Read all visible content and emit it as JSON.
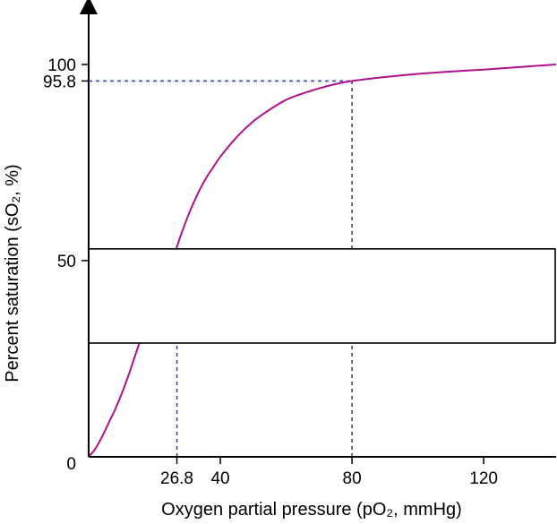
{
  "chart_data": {
    "type": "line",
    "title": "",
    "xlabel": "Oxygen partial pressure (pO₂, mmHg)",
    "ylabel": "Percent saturation (sO₂, %)",
    "xlim": [
      0,
      142
    ],
    "ylim": [
      0,
      100
    ],
    "xticks": [
      26.8,
      40,
      80,
      120
    ],
    "xtick_labels": [
      "26.8",
      "40",
      "80",
      "120"
    ],
    "yticks": [
      0,
      50,
      95.8,
      100
    ],
    "ytick_labels": [
      "0",
      "50",
      "95.8",
      "100"
    ],
    "grid": false,
    "legend": "none",
    "series": [
      {
        "color": "#b0108f",
        "x": [
          0,
          2,
          4,
          6,
          8,
          10,
          12,
          14,
          16,
          18,
          20,
          22,
          24,
          26,
          26.8,
          28,
          30,
          32,
          34,
          36,
          38,
          40,
          45,
          50,
          55,
          60,
          65,
          70,
          75,
          80,
          90,
          100,
          110,
          120,
          130,
          142
        ],
        "y": [
          0,
          2,
          5,
          8.5,
          12,
          16,
          20.5,
          25.5,
          30.5,
          35.5,
          40.5,
          45,
          49,
          52,
          53.5,
          56.5,
          61,
          65,
          68.5,
          71.5,
          74,
          76.5,
          81.5,
          85.5,
          88.5,
          91,
          92.6,
          93.9,
          95,
          95.8,
          96.8,
          97.6,
          98.2,
          98.7,
          99.3,
          100
        ]
      }
    ],
    "reference_lines": [
      {
        "orientation": "horizontal",
        "y": 95.8,
        "x_to": 80,
        "color": "#3344cc",
        "style": "dashed"
      },
      {
        "orientation": "vertical",
        "x": 80,
        "y_to": 95.8,
        "color": "#3344cc",
        "style": "dashed"
      },
      {
        "orientation": "vertical",
        "x": 26.8,
        "y_to": 53.5,
        "color": "#3344cc",
        "style": "dashed"
      }
    ],
    "overlay_box": {
      "x_from": 0,
      "x_to": 142,
      "y_from": 29,
      "y_to": 53
    }
  }
}
